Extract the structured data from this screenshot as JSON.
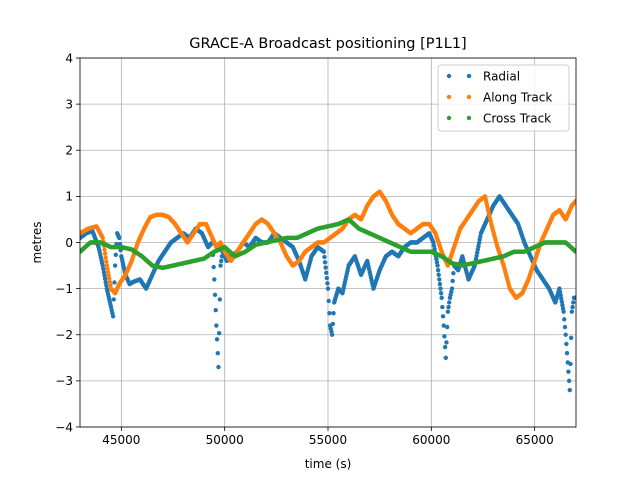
{
  "chart_data": {
    "type": "scatter",
    "title": "GRACE-A Broadcast positioning [P1L1]",
    "xlabel": "time (s)",
    "ylabel": "metres",
    "xlim": [
      43000,
      67000
    ],
    "ylim": [
      -4,
      4
    ],
    "xticks": [
      45000,
      50000,
      55000,
      60000,
      65000
    ],
    "xtick_labels": [
      "45000",
      "50000",
      "55000",
      "60000",
      "65000"
    ],
    "yticks": [
      -4,
      -3,
      -2,
      -1,
      0,
      1,
      2,
      3,
      4
    ],
    "ytick_labels": [
      "−4",
      "−3",
      "−2",
      "−1",
      "0",
      "1",
      "2",
      "3",
      "4"
    ],
    "grid": true,
    "legend_position": "top-right",
    "series": [
      {
        "name": "Radial",
        "color": "#1f77b4",
        "x": [
          43000,
          43300,
          43600,
          43900,
          44100,
          44300,
          44500,
          44600,
          44700,
          44800,
          44900,
          45000,
          45200,
          45400,
          45600,
          45900,
          46200,
          46500,
          46800,
          47100,
          47400,
          47700,
          48000,
          48300,
          48600,
          48900,
          49200,
          49400,
          49500,
          49600,
          49700,
          49800,
          49900,
          50100,
          50300,
          50600,
          50900,
          51200,
          51500,
          51800,
          52100,
          52400,
          52700,
          53000,
          53300,
          53600,
          53900,
          54200,
          54500,
          54800,
          55000,
          55100,
          55200,
          55300,
          55500,
          55700,
          56000,
          56300,
          56600,
          56900,
          57200,
          57500,
          57800,
          58100,
          58400,
          58700,
          59000,
          59300,
          59600,
          59900,
          60100,
          60300,
          60500,
          60600,
          60700,
          60800,
          60900,
          61000,
          61100,
          61300,
          61500,
          61800,
          62100,
          62400,
          62700,
          63000,
          63300,
          63600,
          63900,
          64200,
          64500,
          64800,
          65100,
          65400,
          65700,
          66000,
          66200,
          66400,
          66500,
          66600,
          66700,
          66800,
          66900,
          67000
        ],
        "y": [
          0.1,
          0.2,
          0.25,
          -0.1,
          -0.5,
          -1.0,
          -1.4,
          -1.6,
          -0.5,
          0.2,
          0.1,
          -0.3,
          -0.7,
          -0.9,
          -0.85,
          -0.8,
          -1.0,
          -0.7,
          -0.4,
          -0.2,
          0.0,
          0.1,
          0.2,
          0.1,
          0.3,
          0.2,
          -0.1,
          0.0,
          -0.8,
          -1.8,
          -2.7,
          -0.5,
          -0.2,
          -0.4,
          -0.3,
          -0.2,
          0.0,
          -0.1,
          0.1,
          0.0,
          0.0,
          0.2,
          0.1,
          0.0,
          -0.1,
          -0.4,
          -0.8,
          -0.3,
          -0.1,
          -0.2,
          -1.0,
          -1.8,
          -2.0,
          -1.3,
          -1.0,
          -1.1,
          -0.5,
          -0.3,
          -0.7,
          -0.4,
          -1.0,
          -0.6,
          -0.3,
          -0.2,
          -0.3,
          -0.1,
          0.0,
          0.0,
          0.1,
          0.2,
          0.0,
          -0.5,
          -1.2,
          -1.8,
          -2.5,
          -1.5,
          -1.2,
          -1.0,
          -0.5,
          -0.6,
          -0.3,
          -0.8,
          -0.5,
          0.2,
          0.5,
          0.8,
          1.0,
          0.8,
          0.6,
          0.4,
          0.0,
          -0.3,
          -0.6,
          -0.8,
          -1.0,
          -1.3,
          -1.0,
          -1.5,
          -2.0,
          -2.6,
          -3.2,
          -1.5,
          -1.2,
          -1.2
        ]
      },
      {
        "name": "Along Track",
        "color": "#ff7f0e",
        "x": [
          43000,
          43400,
          43800,
          44100,
          44300,
          44500,
          44700,
          44900,
          45200,
          45500,
          45800,
          46100,
          46400,
          46700,
          47000,
          47300,
          47600,
          47900,
          48200,
          48500,
          48800,
          49100,
          49400,
          49600,
          49800,
          50000,
          50300,
          50600,
          50900,
          51200,
          51500,
          51800,
          52100,
          52400,
          52700,
          53000,
          53300,
          53600,
          53900,
          54200,
          54500,
          54800,
          55100,
          55400,
          55700,
          56000,
          56300,
          56600,
          56900,
          57200,
          57500,
          57800,
          58100,
          58400,
          58700,
          59000,
          59300,
          59600,
          59900,
          60200,
          60500,
          60800,
          61100,
          61400,
          61700,
          62000,
          62300,
          62600,
          62900,
          63200,
          63500,
          63800,
          64100,
          64400,
          64700,
          65000,
          65300,
          65600,
          65900,
          66200,
          66500,
          66800,
          67000
        ],
        "y": [
          0.2,
          0.3,
          0.35,
          0.1,
          -0.5,
          -1.0,
          -1.1,
          -0.9,
          -0.7,
          -0.4,
          0.0,
          0.3,
          0.55,
          0.6,
          0.6,
          0.55,
          0.4,
          0.2,
          0.0,
          0.2,
          0.4,
          0.4,
          0.1,
          -0.1,
          0.0,
          -0.2,
          -0.4,
          -0.2,
          0.0,
          0.2,
          0.4,
          0.5,
          0.4,
          0.2,
          0.0,
          -0.3,
          -0.5,
          -0.4,
          -0.2,
          -0.1,
          0.0,
          0.0,
          0.1,
          0.2,
          0.3,
          0.5,
          0.6,
          0.5,
          0.8,
          1.0,
          1.1,
          0.9,
          0.6,
          0.4,
          0.3,
          0.2,
          0.3,
          0.4,
          0.4,
          0.2,
          -0.2,
          -0.5,
          -0.1,
          0.3,
          0.5,
          0.7,
          0.9,
          1.0,
          0.4,
          -0.1,
          -0.5,
          -1.0,
          -1.2,
          -1.1,
          -0.8,
          -0.4,
          0.0,
          0.3,
          0.6,
          0.7,
          0.5,
          0.8,
          0.9
        ]
      },
      {
        "name": "Cross Track",
        "color": "#2ca02c",
        "x": [
          43000,
          43500,
          44000,
          44500,
          45000,
          45500,
          46000,
          46500,
          47000,
          47500,
          48000,
          48500,
          49000,
          49500,
          50000,
          50500,
          51000,
          51500,
          52000,
          52500,
          53000,
          53500,
          54000,
          54500,
          55000,
          55500,
          56000,
          56500,
          57000,
          57500,
          58000,
          58500,
          59000,
          59500,
          60000,
          60500,
          61000,
          61500,
          62000,
          62500,
          63000,
          63500,
          64000,
          64500,
          65000,
          65500,
          66000,
          66500,
          67000
        ],
        "y": [
          -0.2,
          0.0,
          0.0,
          -0.1,
          -0.1,
          -0.15,
          -0.3,
          -0.5,
          -0.55,
          -0.5,
          -0.45,
          -0.4,
          -0.35,
          -0.2,
          -0.1,
          -0.3,
          -0.2,
          -0.05,
          0.0,
          0.05,
          0.1,
          0.1,
          0.2,
          0.3,
          0.35,
          0.4,
          0.5,
          0.3,
          0.2,
          0.1,
          0.0,
          -0.1,
          -0.2,
          -0.2,
          -0.2,
          -0.3,
          -0.45,
          -0.5,
          -0.45,
          -0.4,
          -0.35,
          -0.3,
          -0.2,
          -0.2,
          -0.1,
          0.0,
          0.0,
          0.0,
          -0.2
        ]
      }
    ]
  }
}
